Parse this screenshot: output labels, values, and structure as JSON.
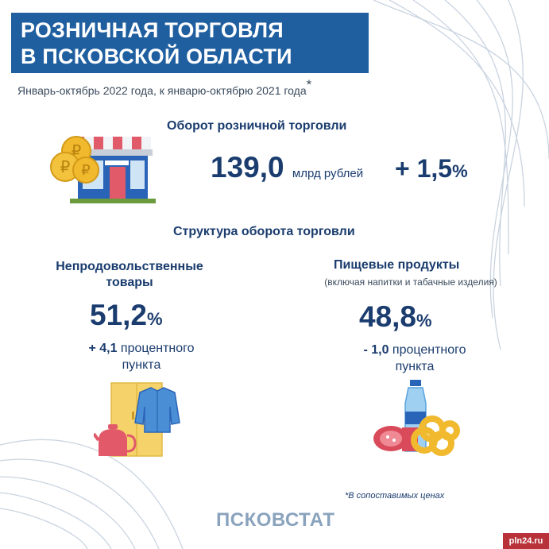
{
  "title": {
    "line1": "РОЗНИЧНАЯ ТОРГОВЛЯ",
    "line2": "В ПСКОВСКОЙ ОБЛАСТИ"
  },
  "subtitle": "Январь-октябрь 2022 года, к январю-октябрю 2021 года",
  "subtitle_mark": "*",
  "turnover": {
    "heading": "Оборот розничной торговли",
    "value": "139,0",
    "unit": "млрд рублей",
    "change": "+ 1,5",
    "change_unit": "%"
  },
  "structure": {
    "heading": "Структура оборота торговли",
    "non_food": {
      "label_line1": "Непродовольственные",
      "label_line2": "товары",
      "share": "51,2",
      "share_unit": "%",
      "change_value": "+ 4,1",
      "change_text": "процентного",
      "change_text2": "пункта"
    },
    "food": {
      "label": "Пищевые продукты",
      "sublabel": "(включая напитки и табачные изделия)",
      "share": "48,8",
      "share_unit": "%",
      "change_value": "- 1,0",
      "change_text": "процентного",
      "change_text2": "пункта"
    }
  },
  "footnote": "*В сопоставимых ценах",
  "brand": "ПСКОВСТАТ",
  "watermark": "pln24.ru",
  "icons": [
    "coins-icon",
    "shop-icon",
    "wardrobe-icon",
    "shirt-icon",
    "kettle-icon",
    "bottle-icon",
    "sausage-icon",
    "bagels-icon"
  ],
  "colors": {
    "title_bg": "#1f5fa0",
    "text": "#1a3c6e",
    "brand": "#8aa3bd"
  }
}
